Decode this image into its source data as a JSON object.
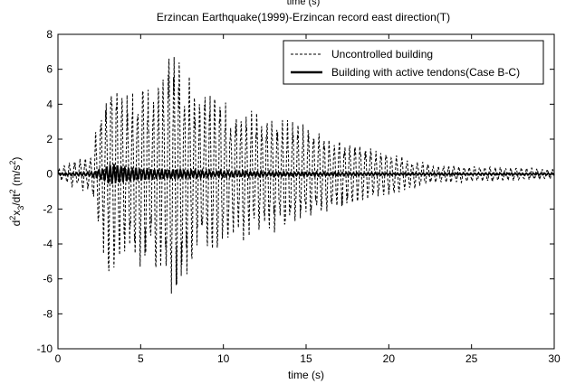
{
  "chart_data": {
    "type": "line",
    "title": "Erzincan Earthquake(1999)-Erzincan record east direction(T)",
    "cut_top_label": "time (s)",
    "xlabel": "time (s)",
    "ylabel_parts": {
      "d": "d",
      "sup1": "2",
      "x": "x",
      "sub": "3",
      "slash": "/dt",
      "sup2": "2",
      "unit_open": " (m/s",
      "sup3": "2",
      "unit_close": ")"
    },
    "xlim": [
      0,
      30
    ],
    "ylim": [
      -10,
      8
    ],
    "xticks": [
      0,
      5,
      10,
      15,
      20,
      25,
      30
    ],
    "yticks": [
      -10,
      -8,
      -6,
      -4,
      -2,
      0,
      2,
      4,
      6,
      8
    ],
    "grid": false,
    "legend_position": "top-right",
    "series": [
      {
        "name": "Uncontrolled building",
        "style": "dashed",
        "color": "#000000",
        "envelope": [
          [
            0,
            0.3
          ],
          [
            1,
            0.8
          ],
          [
            2,
            1.2
          ],
          [
            2.8,
            4.8
          ],
          [
            3.2,
            6.5
          ],
          [
            4,
            4.5
          ],
          [
            5,
            5.5
          ],
          [
            6,
            5.5
          ],
          [
            6.8,
            7.5
          ],
          [
            7.5,
            6.6
          ],
          [
            8.5,
            4.5
          ],
          [
            9.5,
            5.0
          ],
          [
            10.5,
            4.0
          ],
          [
            12,
            3.8
          ],
          [
            13.5,
            3.3
          ],
          [
            15,
            2.8
          ],
          [
            17,
            2.0
          ],
          [
            19,
            1.5
          ],
          [
            21,
            1.0
          ],
          [
            23,
            0.5
          ],
          [
            25,
            0.5
          ],
          [
            27,
            0.4
          ],
          [
            30,
            0.3
          ]
        ]
      },
      {
        "name": "Building with active tendons(Case B-C)",
        "style": "solid",
        "color": "#000000",
        "envelope": [
          [
            0,
            0.06
          ],
          [
            2,
            0.12
          ],
          [
            2.8,
            0.4
          ],
          [
            3.3,
            0.65
          ],
          [
            4,
            0.5
          ],
          [
            5,
            0.35
          ],
          [
            6,
            0.3
          ],
          [
            7,
            0.3
          ],
          [
            8.5,
            0.22
          ],
          [
            10,
            0.18
          ],
          [
            13,
            0.14
          ],
          [
            16,
            0.1
          ],
          [
            20,
            0.07
          ],
          [
            25,
            0.06
          ],
          [
            30,
            0.05
          ]
        ]
      }
    ]
  }
}
